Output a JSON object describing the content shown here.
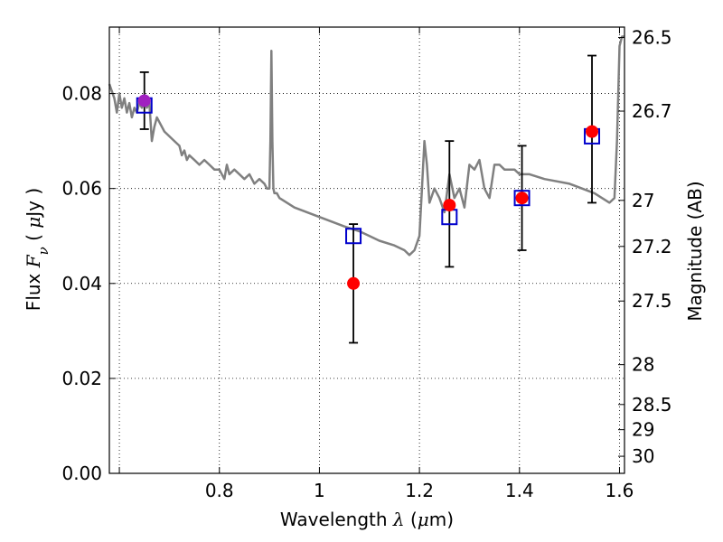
{
  "chart_data": {
    "type": "scatter",
    "xlabel": {
      "pre": "Wavelength ",
      "sym": "λ",
      "post": " (",
      "mu": "μ",
      "unit": "m)"
    },
    "ylabel": {
      "pre": "Flux ",
      "sym": "F",
      "sub": "ν",
      "post": " ( ",
      "mu": "μ",
      "unit": "Jy )"
    },
    "y2label": "Magnitude (AB)",
    "xlim": [
      0.58,
      1.61
    ],
    "ylim": [
      0.0,
      0.094
    ],
    "grid": true,
    "grid_style": "dotted",
    "xticks": [
      {
        "value": 0.6,
        "label": ""
      },
      {
        "value": 0.8,
        "label": "0.8"
      },
      {
        "value": 1.0,
        "label": "1"
      },
      {
        "value": 1.2,
        "label": "1.2"
      },
      {
        "value": 1.4,
        "label": "1.4"
      },
      {
        "value": 1.6,
        "label": "1.6"
      }
    ],
    "yticks": [
      {
        "value": 0.0,
        "label": "0.00"
      },
      {
        "value": 0.02,
        "label": "0.02"
      },
      {
        "value": 0.04,
        "label": "0.04"
      },
      {
        "value": 0.06,
        "label": "0.06"
      },
      {
        "value": 0.08,
        "label": "0.08"
      }
    ],
    "y2ticks": [
      {
        "flux": 0.0918,
        "label": "26.5"
      },
      {
        "flux": 0.0763,
        "label": "26.7"
      },
      {
        "flux": 0.0575,
        "label": "27"
      },
      {
        "flux": 0.0478,
        "label": "27.2"
      },
      {
        "flux": 0.0363,
        "label": "27.5"
      },
      {
        "flux": 0.0229,
        "label": "28"
      },
      {
        "flux": 0.0145,
        "label": "28.5"
      },
      {
        "flux": 0.0092,
        "label": "29"
      },
      {
        "flux": 0.0036,
        "label": "30"
      }
    ],
    "model_spectrum": {
      "color": "#808080",
      "x": [
        0.58,
        0.59,
        0.595,
        0.6,
        0.605,
        0.61,
        0.615,
        0.62,
        0.625,
        0.63,
        0.635,
        0.64,
        0.645,
        0.65,
        0.655,
        0.66,
        0.665,
        0.67,
        0.675,
        0.68,
        0.69,
        0.7,
        0.71,
        0.72,
        0.725,
        0.73,
        0.735,
        0.74,
        0.75,
        0.76,
        0.77,
        0.78,
        0.79,
        0.8,
        0.81,
        0.815,
        0.82,
        0.83,
        0.84,
        0.85,
        0.86,
        0.87,
        0.88,
        0.89,
        0.895,
        0.9,
        0.902,
        0.904,
        0.906,
        0.908,
        0.91,
        0.915,
        0.92,
        0.95,
        1.0,
        1.05,
        1.08,
        1.1,
        1.12,
        1.15,
        1.17,
        1.18,
        1.19,
        1.2,
        1.205,
        1.21,
        1.215,
        1.22,
        1.23,
        1.24,
        1.25,
        1.26,
        1.27,
        1.28,
        1.29,
        1.3,
        1.31,
        1.32,
        1.33,
        1.34,
        1.35,
        1.36,
        1.37,
        1.38,
        1.39,
        1.4,
        1.42,
        1.45,
        1.5,
        1.55,
        1.58,
        1.59,
        1.595,
        1.6,
        1.605,
        1.61
      ],
      "y": [
        0.082,
        0.079,
        0.076,
        0.08,
        0.077,
        0.079,
        0.076,
        0.078,
        0.075,
        0.077,
        0.076,
        0.078,
        0.077,
        0.079,
        0.077,
        0.078,
        0.07,
        0.073,
        0.075,
        0.074,
        0.072,
        0.071,
        0.07,
        0.069,
        0.067,
        0.068,
        0.066,
        0.067,
        0.066,
        0.065,
        0.066,
        0.065,
        0.064,
        0.064,
        0.062,
        0.065,
        0.063,
        0.064,
        0.063,
        0.062,
        0.063,
        0.061,
        0.062,
        0.061,
        0.06,
        0.06,
        0.07,
        0.089,
        0.07,
        0.06,
        0.059,
        0.059,
        0.058,
        0.056,
        0.054,
        0.052,
        0.051,
        0.05,
        0.049,
        0.048,
        0.047,
        0.046,
        0.047,
        0.05,
        0.06,
        0.07,
        0.065,
        0.057,
        0.06,
        0.058,
        0.055,
        0.063,
        0.058,
        0.06,
        0.056,
        0.065,
        0.064,
        0.066,
        0.06,
        0.058,
        0.065,
        0.065,
        0.064,
        0.064,
        0.064,
        0.063,
        0.063,
        0.062,
        0.061,
        0.059,
        0.057,
        0.058,
        0.07,
        0.09,
        0.092,
        0.092
      ]
    },
    "observed": {
      "color": "#ff0000",
      "points": [
        {
          "x": 0.65,
          "y": 0.0785,
          "yerr_low": 0.0725,
          "yerr_high": 0.0845
        },
        {
          "x": 1.068,
          "y": 0.04,
          "yerr_low": 0.0275,
          "yerr_high": 0.0525
        },
        {
          "x": 1.26,
          "y": 0.0565,
          "yerr_low": 0.0435,
          "yerr_high": 0.07
        },
        {
          "x": 1.405,
          "y": 0.058,
          "yerr_low": 0.047,
          "yerr_high": 0.069
        },
        {
          "x": 1.545,
          "y": 0.072,
          "yerr_low": 0.057,
          "yerr_high": 0.088
        }
      ]
    },
    "model_bands": {
      "color": "#0000cc",
      "points": [
        {
          "x": 0.65,
          "y": 0.0775
        },
        {
          "x": 1.068,
          "y": 0.05
        },
        {
          "x": 1.26,
          "y": 0.054
        },
        {
          "x": 1.405,
          "y": 0.058
        },
        {
          "x": 1.545,
          "y": 0.071
        }
      ]
    },
    "highlight_point": {
      "x": 0.65,
      "y": 0.0785,
      "color": "#a020c0"
    }
  }
}
